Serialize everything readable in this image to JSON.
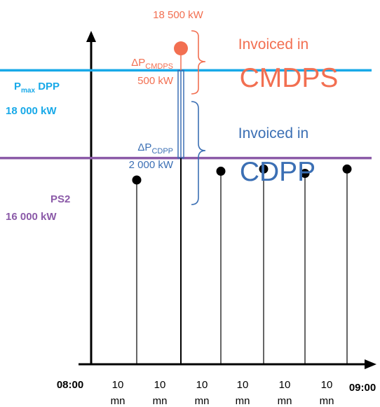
{
  "peak": {
    "label": "18 500 kW",
    "color": "#f26f51"
  },
  "pmax_line": {
    "label_prefix": "P",
    "label_sub": "max",
    "label_suffix": " DPP",
    "value": "18 000 kW",
    "color": "#18a9e8"
  },
  "ps2_line": {
    "label": "PS2",
    "value": "16 000 kW",
    "color": "#8b5aa8"
  },
  "delta_cmdps": {
    "prefix": "ΔP",
    "sub": "CMDPS",
    "value": "500 kW",
    "color": "#f26f51"
  },
  "delta_cdpp": {
    "prefix": "ΔP",
    "sub": "CDPP",
    "value": "2 000 kW",
    "color": "#3b6fb4"
  },
  "invoice_cmdps": {
    "line1": "Invoiced in",
    "line2": "CMDPS",
    "color": "#f26f51"
  },
  "invoice_cdpp": {
    "line1": "Invoiced in",
    "line2": "CDPP",
    "color": "#3b6fb4"
  },
  "time_axis": {
    "start": "08:00",
    "end": "09:00",
    "interval_labels": [
      {
        "num": "10",
        "unit": "mn"
      },
      {
        "num": "10",
        "unit": "mn"
      },
      {
        "num": "10",
        "unit": "mn"
      },
      {
        "num": "10",
        "unit": "mn"
      },
      {
        "num": "10",
        "unit": "mn"
      },
      {
        "num": "10",
        "unit": "mn"
      }
    ]
  },
  "chart_data": {
    "type": "scatter",
    "series": [
      {
        "values": [
          15500,
          18500,
          15700,
          15750,
          15650,
          15750
        ]
      }
    ],
    "reference_lines": [
      {
        "value": 18000
      },
      {
        "value": 16000
      }
    ],
    "ylim": [
      11300,
      18900
    ]
  }
}
